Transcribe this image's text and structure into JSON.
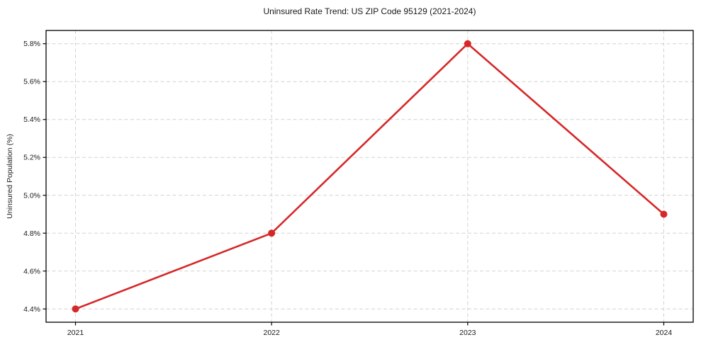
{
  "chart": {
    "title": "Uninsured Rate Trend: US ZIP Code 95129 (2021-2024)",
    "ylabel": "Uninsured Population (%)"
  },
  "chart_data": {
    "type": "line",
    "title": "Uninsured Rate Trend: US ZIP Code 95129 (2021-2024)",
    "xlabel": "",
    "ylabel": "Uninsured Population (%)",
    "x": [
      2021,
      2022,
      2023,
      2024
    ],
    "values": [
      4.4,
      4.8,
      5.8,
      4.9
    ],
    "xtick_labels": [
      "2021",
      "2022",
      "2023",
      "2024"
    ],
    "yticks": [
      4.4,
      4.6,
      4.8,
      5.0,
      5.2,
      5.4,
      5.6,
      5.8
    ],
    "ytick_labels": [
      "4.4%",
      "4.6%",
      "4.8%",
      "5.0%",
      "5.2%",
      "5.4%",
      "5.6%",
      "5.8%"
    ],
    "xlim": [
      2020.85,
      2024.15
    ],
    "ylim": [
      4.33,
      5.87
    ],
    "grid": true,
    "grid_style": "dashed",
    "legend": false,
    "colors": {
      "line": "#d62728",
      "marker": "#d62728",
      "grid": "#d2d2d2",
      "spine": "#000000",
      "text": "#1a1a1a",
      "background": "#ffffff"
    }
  }
}
